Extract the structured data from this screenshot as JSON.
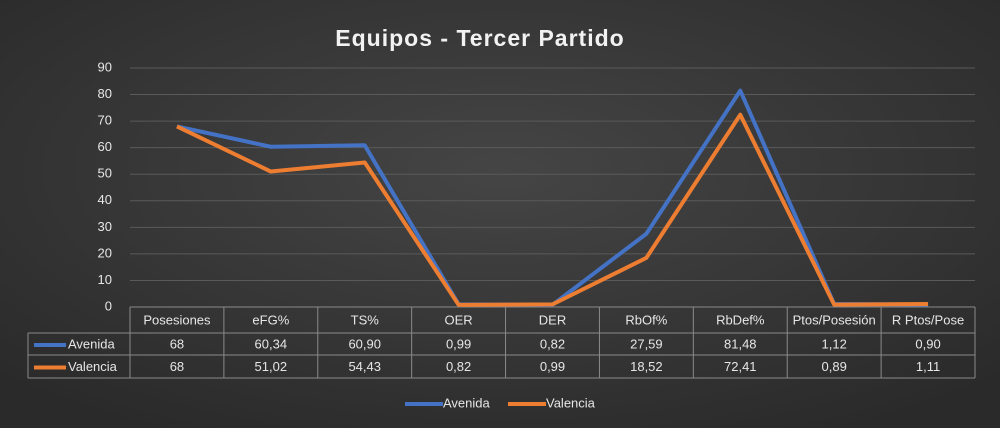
{
  "chart_data": {
    "type": "line",
    "title": "Equipos - Tercer Partido",
    "categories": [
      "Posesiones",
      "eFG%",
      "TS%",
      "OER",
      "DER",
      "RbOf%",
      "RbDef%",
      "Ptos/Posesión",
      "R Ptos/Pose"
    ],
    "series": [
      {
        "name": "Avenida",
        "color": "#4472c4",
        "values": [
          68,
          60.34,
          60.9,
          0.99,
          0.82,
          27.59,
          81.48,
          1.12,
          0.9
        ],
        "value_labels": [
          "68",
          "60,34",
          "60,90",
          "0,99",
          "0,82",
          "27,59",
          "81,48",
          "1,12",
          "0,90"
        ]
      },
      {
        "name": "Valencia",
        "color": "#ed7d31",
        "values": [
          68,
          51.02,
          54.43,
          0.82,
          0.99,
          18.52,
          72.41,
          0.89,
          1.11
        ],
        "value_labels": [
          "68",
          "51,02",
          "54,43",
          "0,82",
          "0,99",
          "18,52",
          "72,41",
          "0,89",
          "1,11"
        ]
      }
    ],
    "ylim": [
      0,
      90
    ],
    "yticks": [
      0,
      10,
      20,
      30,
      40,
      50,
      60,
      70,
      80,
      90
    ],
    "grid": true,
    "legend": "bottom"
  }
}
